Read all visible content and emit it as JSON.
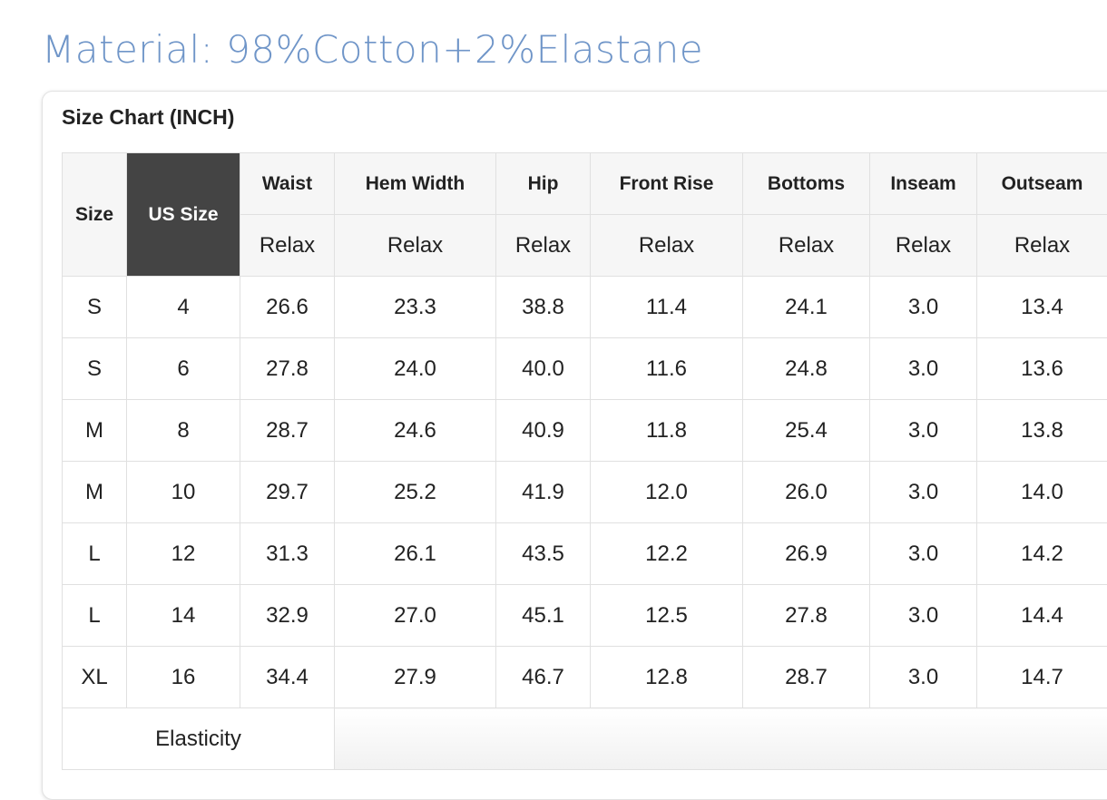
{
  "header": {
    "material": "Material: 98%Cotton+2%Elastane"
  },
  "size_chart": {
    "title": "Size Chart (INCH)"
  },
  "table": {
    "columns": [
      "Size",
      "US Size",
      "Waist",
      "Hem Width",
      "Hip",
      "Front Rise",
      "Bottoms",
      "Inseam",
      "Outseam"
    ],
    "subheader": [
      "Relax",
      "Relax",
      "Relax",
      "Relax",
      "Relax",
      "Relax",
      "Relax"
    ],
    "rows": [
      [
        "S",
        "4",
        "26.6",
        "23.3",
        "38.8",
        "11.4",
        "24.1",
        "3.0",
        "13.4"
      ],
      [
        "S",
        "6",
        "27.8",
        "24.0",
        "40.0",
        "11.6",
        "24.8",
        "3.0",
        "13.6"
      ],
      [
        "M",
        "8",
        "28.7",
        "24.6",
        "40.9",
        "11.8",
        "25.4",
        "3.0",
        "13.8"
      ],
      [
        "M",
        "10",
        "29.7",
        "25.2",
        "41.9",
        "12.0",
        "26.0",
        "3.0",
        "14.0"
      ],
      [
        "L",
        "12",
        "31.3",
        "26.1",
        "43.5",
        "12.2",
        "26.9",
        "3.0",
        "14.2"
      ],
      [
        "L",
        "14",
        "32.9",
        "27.0",
        "45.1",
        "12.5",
        "27.8",
        "3.0",
        "14.4"
      ],
      [
        "XL",
        "16",
        "34.4",
        "27.9",
        "46.7",
        "12.8",
        "28.7",
        "3.0",
        "14.7"
      ]
    ],
    "footer": "Elasticity"
  }
}
